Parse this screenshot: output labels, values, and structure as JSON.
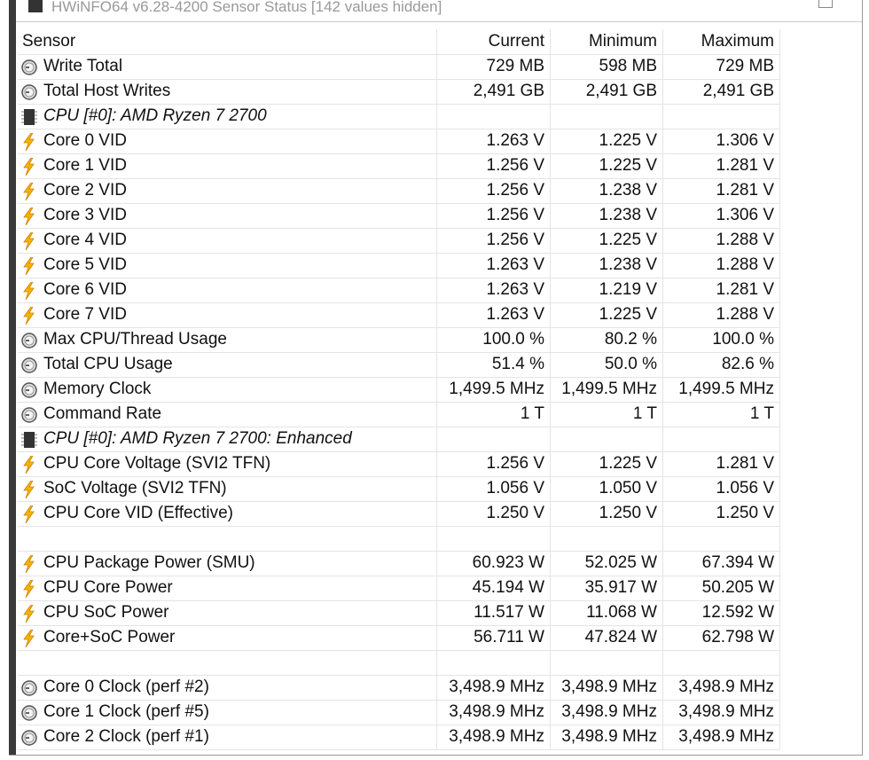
{
  "window": {
    "title": "HWiNFO64 v6.28-4200 Sensor Status [142 values hidden]"
  },
  "table": {
    "columns": [
      "Sensor",
      "Current",
      "Minimum",
      "Maximum"
    ],
    "rows": [
      {
        "icon": "clock",
        "sensor": "Write Total",
        "current": "729 MB",
        "minimum": "598 MB",
        "maximum": "729 MB"
      },
      {
        "icon": "clock",
        "sensor": "Total Host Writes",
        "current": "2,491 GB",
        "minimum": "2,491 GB",
        "maximum": "2,491 GB"
      },
      {
        "icon": "chip",
        "sensor": "CPU [#0]: AMD Ryzen 7 2700"
      },
      {
        "icon": "bolt",
        "sensor": "Core 0 VID",
        "current": "1.263 V",
        "minimum": "1.225 V",
        "maximum": "1.306 V"
      },
      {
        "icon": "bolt",
        "sensor": "Core 1 VID",
        "current": "1.256 V",
        "minimum": "1.225 V",
        "maximum": "1.281 V"
      },
      {
        "icon": "bolt",
        "sensor": "Core 2 VID",
        "current": "1.256 V",
        "minimum": "1.238 V",
        "maximum": "1.281 V"
      },
      {
        "icon": "bolt",
        "sensor": "Core 3 VID",
        "current": "1.256 V",
        "minimum": "1.238 V",
        "maximum": "1.306 V"
      },
      {
        "icon": "bolt",
        "sensor": "Core 4 VID",
        "current": "1.256 V",
        "minimum": "1.225 V",
        "maximum": "1.288 V"
      },
      {
        "icon": "bolt",
        "sensor": "Core 5 VID",
        "current": "1.263 V",
        "minimum": "1.238 V",
        "maximum": "1.288 V"
      },
      {
        "icon": "bolt",
        "sensor": "Core 6 VID",
        "current": "1.263 V",
        "minimum": "1.219 V",
        "maximum": "1.281 V"
      },
      {
        "icon": "bolt",
        "sensor": "Core 7 VID",
        "current": "1.263 V",
        "minimum": "1.225 V",
        "maximum": "1.288 V"
      },
      {
        "icon": "clock",
        "sensor": "Max CPU/Thread Usage",
        "current": "100.0 %",
        "minimum": "80.2 %",
        "maximum": "100.0 %"
      },
      {
        "icon": "clock",
        "sensor": "Total CPU Usage",
        "current": "51.4 %",
        "minimum": "50.0 %",
        "maximum": "82.6 %"
      },
      {
        "icon": "clock",
        "sensor": "Memory Clock",
        "current": "1,499.5 MHz",
        "minimum": "1,499.5 MHz",
        "maximum": "1,499.5 MHz"
      },
      {
        "icon": "clock",
        "sensor": "Command Rate",
        "current": "1 T",
        "minimum": "1 T",
        "maximum": "1 T"
      },
      {
        "icon": "chip",
        "sensor": "CPU [#0]: AMD Ryzen 7 2700: Enhanced"
      },
      {
        "icon": "bolt",
        "sensor": "CPU Core Voltage (SVI2 TFN)",
        "current": "1.256 V",
        "minimum": "1.225 V",
        "maximum": "1.281 V"
      },
      {
        "icon": "bolt",
        "sensor": "SoC Voltage (SVI2 TFN)",
        "current": "1.056 V",
        "minimum": "1.050 V",
        "maximum": "1.056 V"
      },
      {
        "icon": "bolt",
        "sensor": "CPU Core VID (Effective)",
        "current": "1.250 V",
        "minimum": "1.250 V",
        "maximum": "1.250 V"
      },
      null,
      {
        "icon": "bolt",
        "sensor": "CPU Package Power (SMU)",
        "current": "60.923 W",
        "minimum": "52.025 W",
        "maximum": "67.394 W"
      },
      {
        "icon": "bolt",
        "sensor": "CPU Core Power",
        "current": "45.194 W",
        "minimum": "35.917 W",
        "maximum": "50.205 W"
      },
      {
        "icon": "bolt",
        "sensor": "CPU SoC Power",
        "current": "11.517 W",
        "minimum": "11.068 W",
        "maximum": "12.592 W"
      },
      {
        "icon": "bolt",
        "sensor": "Core+SoC Power",
        "current": "56.711 W",
        "minimum": "47.824 W",
        "maximum": "62.798 W"
      },
      null,
      {
        "icon": "clock",
        "sensor": "Core 0 Clock (perf #2)",
        "current": "3,498.9 MHz",
        "minimum": "3,498.9 MHz",
        "maximum": "3,498.9 MHz"
      },
      {
        "icon": "clock",
        "sensor": "Core 1 Clock (perf #5)",
        "current": "3,498.9 MHz",
        "minimum": "3,498.9 MHz",
        "maximum": "3,498.9 MHz"
      },
      {
        "icon": "clock",
        "sensor": "Core 2 Clock (perf #1)",
        "current": "3,498.9 MHz",
        "minimum": "3,498.9 MHz",
        "maximum": "3,498.9 MHz"
      }
    ]
  }
}
